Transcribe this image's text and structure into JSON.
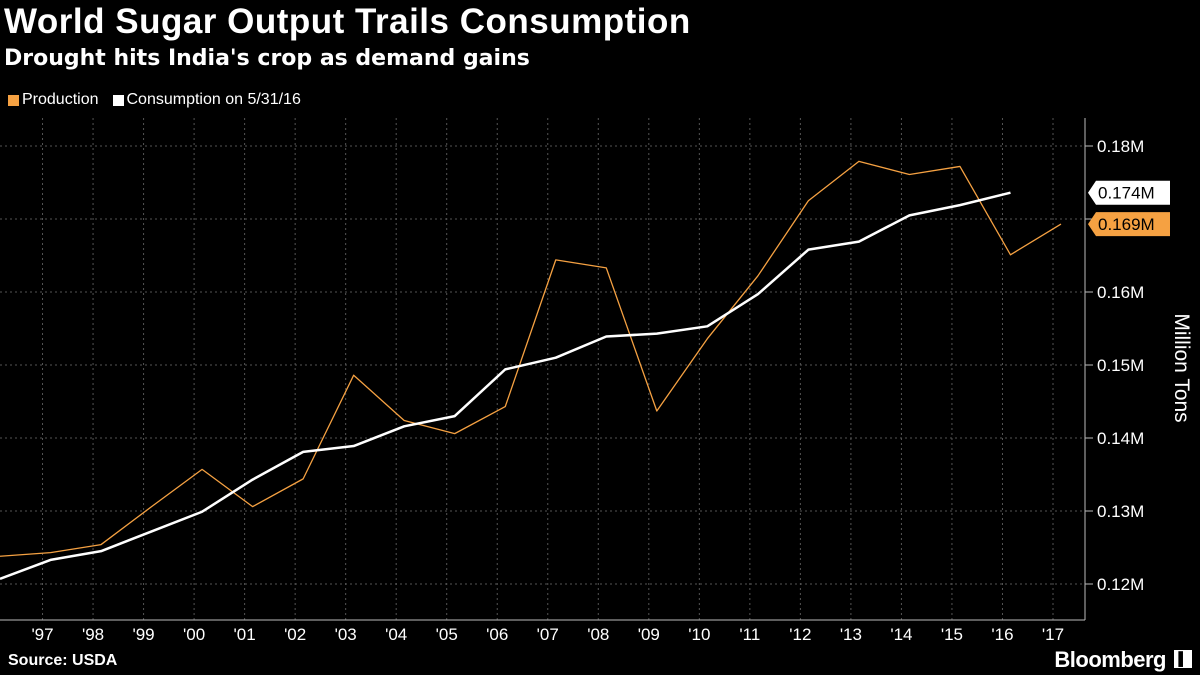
{
  "header": {
    "title": "World Sugar Output Trails Consumption",
    "subtitle": "Drought hits India's crop as demand gains"
  },
  "footer": {
    "source": "Source: USDA",
    "brand": "Bloomberg"
  },
  "colors": {
    "background": "#000000",
    "production": "#f5a142",
    "consumption": "#ffffff",
    "grid": "#555555"
  },
  "chart_data": {
    "type": "line",
    "title": "World Sugar Output Trails Consumption",
    "subtitle": "Drought hits India's crop as demand gains",
    "ylabel": "Million Tons",
    "ylim": [
      0.1155,
      0.1855
    ],
    "xlim": [
      1996,
      2017
    ],
    "yticks": [
      0.12,
      0.13,
      0.14,
      0.15,
      0.16,
      0.17,
      0.18
    ],
    "ytick_labels": [
      "0.12M",
      "0.13M",
      "0.14M",
      "0.15M",
      "0.16M",
      "0.17M",
      "0.18M"
    ],
    "xticks": [
      1997,
      1998,
      1999,
      2000,
      2001,
      2002,
      2003,
      2004,
      2005,
      2006,
      2007,
      2008,
      2009,
      2010,
      2011,
      2012,
      2013,
      2014,
      2015,
      2016,
      2017
    ],
    "xtick_labels": [
      "'97",
      "'98",
      "'99",
      "'00",
      "'01",
      "'02",
      "'03",
      "'04",
      "'05",
      "'06",
      "'07",
      "'08",
      "'09",
      "'10",
      "'11",
      "'12",
      "'13",
      "'14",
      "'15",
      "'16",
      "'17"
    ],
    "grid": true,
    "legend_position": "top-left",
    "series": [
      {
        "name": "Production",
        "color": "#f5a142",
        "x": [
          1996,
          1997,
          1998,
          1999,
          2000,
          2001,
          2002,
          2003,
          2004,
          2005,
          2006,
          2007,
          2008,
          2009,
          2010,
          2011,
          2012,
          2013,
          2014,
          2015,
          2016,
          2017
        ],
        "values": [
          0.1238,
          0.1243,
          0.1254,
          0.1306,
          0.1357,
          0.1306,
          0.1344,
          0.1486,
          0.1424,
          0.1406,
          0.1443,
          0.1644,
          0.1633,
          0.1437,
          0.1536,
          0.1622,
          0.1725,
          0.1779,
          0.1761,
          0.1772,
          0.1651,
          0.1693
        ],
        "end_label": "0.169M"
      },
      {
        "name": "Consumption on 5/31/16",
        "color": "#ffffff",
        "x": [
          1996,
          1997,
          1998,
          1999,
          2000,
          2001,
          2002,
          2003,
          2004,
          2005,
          2006,
          2007,
          2008,
          2009,
          2010,
          2011,
          2012,
          2013,
          2014,
          2015,
          2016
        ],
        "values": [
          0.1207,
          0.1233,
          0.1245,
          0.1272,
          0.1299,
          0.1343,
          0.1381,
          0.1389,
          0.1416,
          0.143,
          0.1494,
          0.151,
          0.1539,
          0.1543,
          0.1553,
          0.1597,
          0.1658,
          0.1669,
          0.1705,
          0.1719,
          0.1736
        ],
        "end_label": "0.174M"
      }
    ]
  }
}
